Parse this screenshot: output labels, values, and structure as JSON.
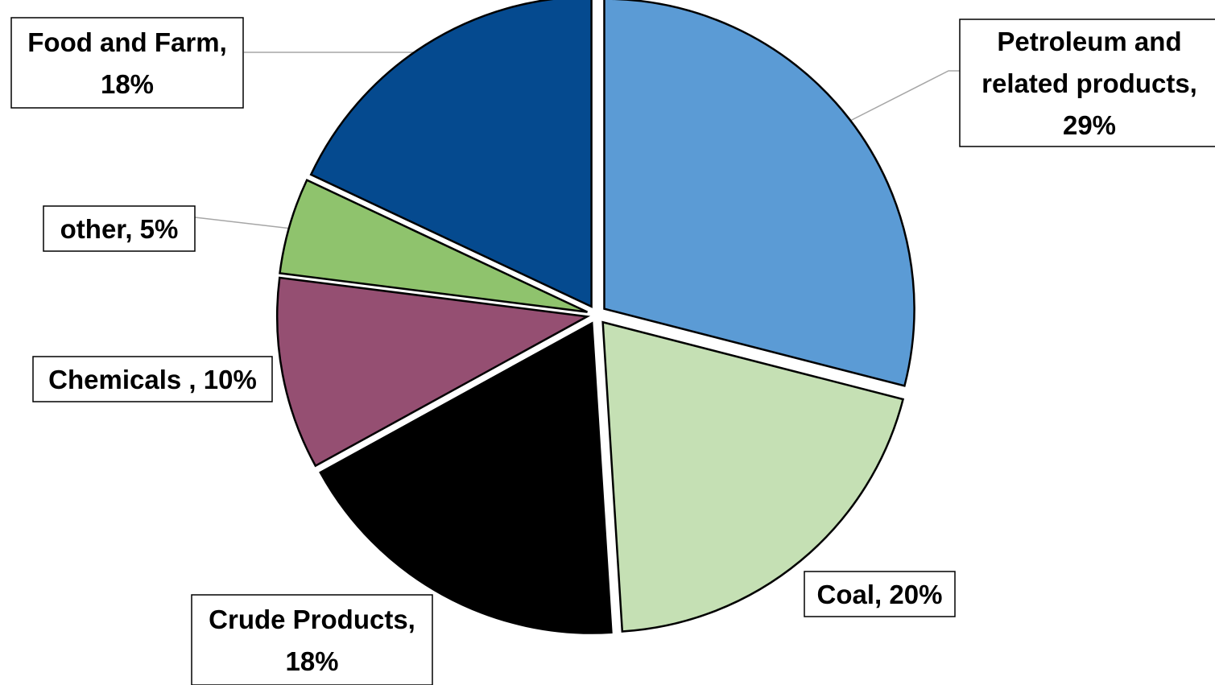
{
  "chart_data": {
    "type": "pie",
    "title": "",
    "legend": "none",
    "slices": [
      {
        "label": "Petroleum and related products",
        "value": 29,
        "label_text": [
          "Petroleum and",
          "related products,",
          "29%"
        ],
        "color": "#5b9bd5"
      },
      {
        "label": "Coal",
        "value": 20,
        "label_text": [
          "Coal, 20%"
        ],
        "color": "#c5e0b4"
      },
      {
        "label": "Crude Products",
        "value": 18,
        "label_text": [
          "Crude Products,",
          "18%"
        ],
        "color": "#000000"
      },
      {
        "label": "Chemicals",
        "value": 10,
        "label_text": [
          "Chemicals , 10%"
        ],
        "color": "#954f72"
      },
      {
        "label": "other",
        "value": 5,
        "label_text": [
          "other, 5%"
        ],
        "color": "#8fc36d"
      },
      {
        "label": "Food and Farm",
        "value": 18,
        "label_text": [
          "Food and Farm,",
          "18%"
        ],
        "color": "#054a8f"
      }
    ]
  }
}
